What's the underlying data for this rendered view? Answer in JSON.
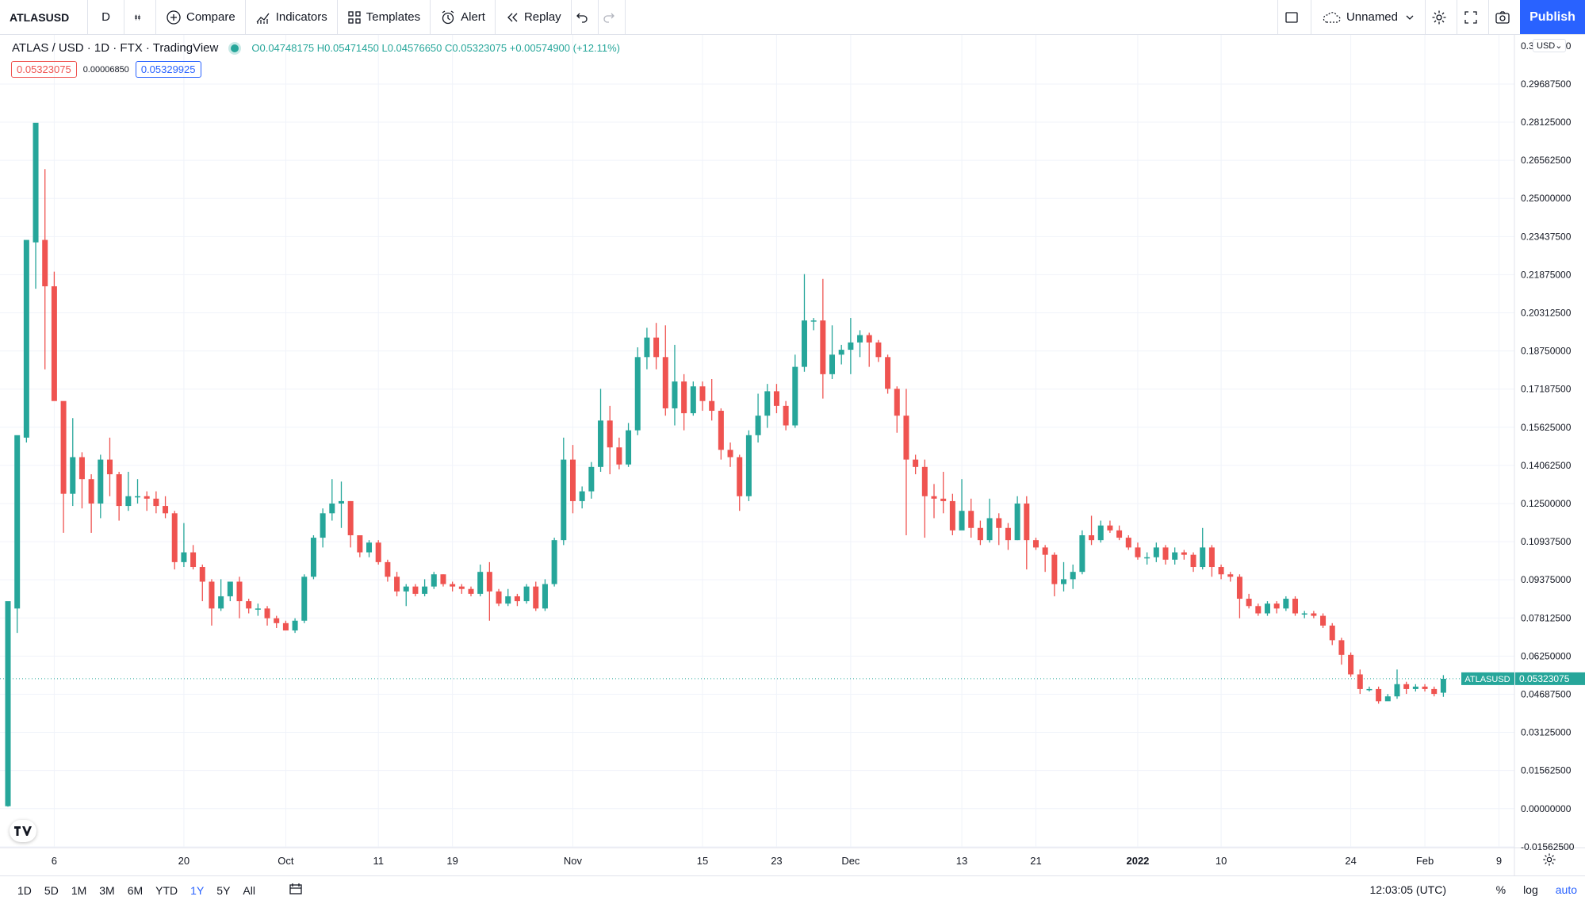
{
  "toolbar": {
    "symbol": "ATLASUSD",
    "interval": "D",
    "compare": "Compare",
    "indicators": "Indicators",
    "templates": "Templates",
    "alert": "Alert",
    "replay": "Replay",
    "layout_name": "Unnamed",
    "publish": "Publish"
  },
  "legend": {
    "title": "ATLAS / USD · 1D · FTX · TradingView",
    "open": "O0.04748175",
    "high": "H0.05471450",
    "low": "L0.04576650",
    "close": "C0.05323075",
    "change": "+0.00574900 (+12.11%)",
    "sell_price": "0.05323075",
    "spread": "0.00006850",
    "buy_price": "0.05329925"
  },
  "colors": {
    "up": "#26a69a",
    "down": "#ef5350",
    "accent": "#2962ff",
    "grid": "#f0f3fa"
  },
  "chart_data": {
    "type": "candlestick",
    "currency": "USD",
    "price_label": "ATLASUSD",
    "last_price": 0.05323075,
    "ylim": [
      -0.016,
      0.317
    ],
    "y_ticks": [
      "0.29687500",
      "0.28125000",
      "0.26562500",
      "0.25000000",
      "0.23437500",
      "0.21875000",
      "0.20312500",
      "0.18750000",
      "0.17187500",
      "0.15625000",
      "0.14062500",
      "0.12500000",
      "0.10937500",
      "0.09375000",
      "0.07812500",
      "0.06250000",
      "0.04687500",
      "0.03125000",
      "0.01562500",
      "0.00000000",
      "-0.01562500"
    ],
    "y_top_partial": "0.31250000",
    "x_ticks": [
      {
        "label": "6",
        "day": 5
      },
      {
        "label": "20",
        "day": 19
      },
      {
        "label": "Oct",
        "day": 30
      },
      {
        "label": "11",
        "day": 40
      },
      {
        "label": "19",
        "day": 48
      },
      {
        "label": "Nov",
        "day": 61
      },
      {
        "label": "15",
        "day": 75
      },
      {
        "label": "23",
        "day": 83
      },
      {
        "label": "Dec",
        "day": 91
      },
      {
        "label": "13",
        "day": 103
      },
      {
        "label": "21",
        "day": 111
      },
      {
        "label": "2022",
        "day": 122
      },
      {
        "label": "10",
        "day": 131
      },
      {
        "label": "24",
        "day": 145
      },
      {
        "label": "Feb",
        "day": 153
      },
      {
        "label": "9",
        "day": 161
      }
    ],
    "candles": [
      [
        0.001,
        0.085,
        0.0008,
        0.082
      ],
      [
        0.082,
        0.153,
        0.072,
        0.152
      ],
      [
        0.152,
        0.233,
        0.15,
        0.232
      ],
      [
        0.232,
        0.281,
        0.213,
        0.233
      ],
      [
        0.233,
        0.214,
        0.262,
        0.18
      ],
      [
        0.214,
        0.167,
        0.22,
        0.175
      ],
      [
        0.167,
        0.129,
        0.166,
        0.113
      ],
      [
        0.129,
        0.144,
        0.16,
        0.124
      ],
      [
        0.144,
        0.135,
        0.146,
        0.123
      ],
      [
        0.135,
        0.125,
        0.137,
        0.113
      ],
      [
        0.125,
        0.143,
        0.145,
        0.119
      ],
      [
        0.143,
        0.137,
        0.152,
        0.128
      ],
      [
        0.137,
        0.124,
        0.138,
        0.118
      ],
      [
        0.124,
        0.128,
        0.138,
        0.122
      ],
      [
        0.128,
        0.128,
        0.135,
        0.125
      ],
      [
        0.128,
        0.127,
        0.13,
        0.122
      ],
      [
        0.127,
        0.124,
        0.13,
        0.121
      ],
      [
        0.124,
        0.121,
        0.128,
        0.119
      ],
      [
        0.121,
        0.101,
        0.122,
        0.098
      ],
      [
        0.101,
        0.105,
        0.117,
        0.099
      ],
      [
        0.105,
        0.099,
        0.108,
        0.098
      ],
      [
        0.099,
        0.093,
        0.1,
        0.085
      ],
      [
        0.093,
        0.082,
        0.094,
        0.075
      ],
      [
        0.082,
        0.087,
        0.094,
        0.081
      ],
      [
        0.087,
        0.093,
        0.093,
        0.085
      ],
      [
        0.093,
        0.085,
        0.095,
        0.078
      ],
      [
        0.085,
        0.082,
        0.086,
        0.08
      ],
      [
        0.082,
        0.082,
        0.084,
        0.079
      ],
      [
        0.082,
        0.078,
        0.083,
        0.075
      ],
      [
        0.078,
        0.076,
        0.079,
        0.074
      ],
      [
        0.076,
        0.073,
        0.077,
        0.073
      ],
      [
        0.073,
        0.077,
        0.078,
        0.072
      ],
      [
        0.077,
        0.095,
        0.096,
        0.076
      ],
      [
        0.095,
        0.111,
        0.112,
        0.094
      ],
      [
        0.111,
        0.121,
        0.123,
        0.107
      ],
      [
        0.121,
        0.125,
        0.135,
        0.118
      ],
      [
        0.125,
        0.126,
        0.134,
        0.115
      ],
      [
        0.126,
        0.112,
        0.126,
        0.107
      ],
      [
        0.112,
        0.105,
        0.112,
        0.103
      ],
      [
        0.105,
        0.109,
        0.11,
        0.103
      ],
      [
        0.109,
        0.101,
        0.11,
        0.1
      ],
      [
        0.101,
        0.095,
        0.102,
        0.093
      ],
      [
        0.095,
        0.089,
        0.097,
        0.087
      ],
      [
        0.089,
        0.091,
        0.092,
        0.083
      ],
      [
        0.091,
        0.088,
        0.092,
        0.087
      ],
      [
        0.088,
        0.091,
        0.094,
        0.087
      ],
      [
        0.091,
        0.096,
        0.097,
        0.09
      ],
      [
        0.096,
        0.092,
        0.096,
        0.091
      ],
      [
        0.092,
        0.091,
        0.093,
        0.089
      ],
      [
        0.091,
        0.09,
        0.092,
        0.088
      ],
      [
        0.09,
        0.088,
        0.091,
        0.087
      ],
      [
        0.088,
        0.097,
        0.1,
        0.087
      ],
      [
        0.097,
        0.089,
        0.101,
        0.077
      ],
      [
        0.089,
        0.084,
        0.09,
        0.083
      ],
      [
        0.084,
        0.087,
        0.09,
        0.083
      ],
      [
        0.087,
        0.085,
        0.088,
        0.083
      ],
      [
        0.085,
        0.091,
        0.092,
        0.084
      ],
      [
        0.091,
        0.082,
        0.093,
        0.081
      ],
      [
        0.082,
        0.092,
        0.094,
        0.081
      ],
      [
        0.092,
        0.11,
        0.111,
        0.091
      ],
      [
        0.11,
        0.143,
        0.152,
        0.108
      ],
      [
        0.143,
        0.126,
        0.149,
        0.121
      ],
      [
        0.126,
        0.13,
        0.132,
        0.123
      ],
      [
        0.13,
        0.14,
        0.142,
        0.127
      ],
      [
        0.14,
        0.159,
        0.172,
        0.138
      ],
      [
        0.159,
        0.148,
        0.165,
        0.137
      ],
      [
        0.148,
        0.141,
        0.152,
        0.139
      ],
      [
        0.141,
        0.155,
        0.158,
        0.14
      ],
      [
        0.155,
        0.185,
        0.189,
        0.153
      ],
      [
        0.185,
        0.193,
        0.197,
        0.18
      ],
      [
        0.193,
        0.185,
        0.199,
        0.18
      ],
      [
        0.185,
        0.164,
        0.198,
        0.161
      ],
      [
        0.164,
        0.175,
        0.19,
        0.157
      ],
      [
        0.175,
        0.162,
        0.178,
        0.155
      ],
      [
        0.162,
        0.173,
        0.175,
        0.161
      ],
      [
        0.173,
        0.167,
        0.175,
        0.163
      ],
      [
        0.167,
        0.163,
        0.176,
        0.159
      ],
      [
        0.163,
        0.147,
        0.164,
        0.143
      ],
      [
        0.147,
        0.144,
        0.15,
        0.14
      ],
      [
        0.144,
        0.128,
        0.145,
        0.122
      ],
      [
        0.128,
        0.153,
        0.155,
        0.126
      ],
      [
        0.153,
        0.161,
        0.17,
        0.15
      ],
      [
        0.161,
        0.171,
        0.174,
        0.156
      ],
      [
        0.171,
        0.165,
        0.174,
        0.162
      ],
      [
        0.165,
        0.157,
        0.167,
        0.155
      ],
      [
        0.157,
        0.181,
        0.186,
        0.156
      ],
      [
        0.181,
        0.2,
        0.219,
        0.179
      ],
      [
        0.2,
        0.2,
        0.201,
        0.196
      ],
      [
        0.2,
        0.178,
        0.217,
        0.168
      ],
      [
        0.178,
        0.186,
        0.198,
        0.176
      ],
      [
        0.186,
        0.188,
        0.19,
        0.182
      ],
      [
        0.188,
        0.191,
        0.201,
        0.178
      ],
      [
        0.191,
        0.194,
        0.196,
        0.185
      ],
      [
        0.194,
        0.191,
        0.195,
        0.181
      ],
      [
        0.191,
        0.185,
        0.192,
        0.183
      ],
      [
        0.185,
        0.172,
        0.186,
        0.17
      ],
      [
        0.172,
        0.161,
        0.173,
        0.154
      ],
      [
        0.161,
        0.143,
        0.172,
        0.112
      ],
      [
        0.143,
        0.14,
        0.145,
        0.137
      ],
      [
        0.14,
        0.128,
        0.143,
        0.111
      ],
      [
        0.128,
        0.127,
        0.133,
        0.119
      ],
      [
        0.127,
        0.126,
        0.138,
        0.121
      ],
      [
        0.126,
        0.114,
        0.129,
        0.112
      ],
      [
        0.114,
        0.122,
        0.135,
        0.116
      ],
      [
        0.122,
        0.115,
        0.127,
        0.111
      ],
      [
        0.115,
        0.11,
        0.118,
        0.108
      ],
      [
        0.11,
        0.119,
        0.127,
        0.109
      ],
      [
        0.119,
        0.115,
        0.121,
        0.108
      ],
      [
        0.115,
        0.11,
        0.117,
        0.106
      ],
      [
        0.11,
        0.125,
        0.128,
        0.11
      ],
      [
        0.125,
        0.11,
        0.128,
        0.098
      ],
      [
        0.11,
        0.107,
        0.111,
        0.106
      ],
      [
        0.107,
        0.104,
        0.108,
        0.097
      ],
      [
        0.104,
        0.092,
        0.105,
        0.087
      ],
      [
        0.092,
        0.094,
        0.101,
        0.089
      ],
      [
        0.094,
        0.097,
        0.1,
        0.09
      ],
      [
        0.097,
        0.112,
        0.114,
        0.096
      ],
      [
        0.112,
        0.11,
        0.12,
        0.108
      ],
      [
        0.11,
        0.116,
        0.118,
        0.109
      ],
      [
        0.116,
        0.114,
        0.118,
        0.113
      ],
      [
        0.114,
        0.111,
        0.116,
        0.11
      ],
      [
        0.111,
        0.107,
        0.112,
        0.106
      ],
      [
        0.107,
        0.103,
        0.109,
        0.102
      ],
      [
        0.103,
        0.103,
        0.105,
        0.1
      ],
      [
        0.103,
        0.107,
        0.109,
        0.101
      ],
      [
        0.107,
        0.102,
        0.108,
        0.1
      ],
      [
        0.102,
        0.105,
        0.107,
        0.1
      ],
      [
        0.105,
        0.104,
        0.106,
        0.102
      ],
      [
        0.104,
        0.099,
        0.105,
        0.097
      ],
      [
        0.099,
        0.107,
        0.115,
        0.098
      ],
      [
        0.107,
        0.099,
        0.108,
        0.095
      ],
      [
        0.099,
        0.096,
        0.1,
        0.094
      ],
      [
        0.096,
        0.095,
        0.097,
        0.093
      ],
      [
        0.095,
        0.086,
        0.096,
        0.078
      ],
      [
        0.086,
        0.083,
        0.088,
        0.082
      ],
      [
        0.083,
        0.08,
        0.084,
        0.079
      ],
      [
        0.08,
        0.084,
        0.085,
        0.079
      ],
      [
        0.084,
        0.082,
        0.085,
        0.08
      ],
      [
        0.082,
        0.086,
        0.087,
        0.081
      ],
      [
        0.086,
        0.08,
        0.087,
        0.079
      ],
      [
        0.08,
        0.08,
        0.081,
        0.078
      ],
      [
        0.08,
        0.079,
        0.081,
        0.078
      ],
      [
        0.079,
        0.075,
        0.08,
        0.074
      ],
      [
        0.075,
        0.069,
        0.076,
        0.067
      ],
      [
        0.069,
        0.063,
        0.07,
        0.059
      ],
      [
        0.063,
        0.055,
        0.064,
        0.054
      ],
      [
        0.055,
        0.049,
        0.057,
        0.047
      ],
      [
        0.049,
        0.049,
        0.05,
        0.048
      ],
      [
        0.049,
        0.044,
        0.05,
        0.043
      ],
      [
        0.044,
        0.046,
        0.047,
        0.045
      ],
      [
        0.046,
        0.051,
        0.057,
        0.045
      ],
      [
        0.051,
        0.049,
        0.052,
        0.047
      ],
      [
        0.049,
        0.05,
        0.051,
        0.048
      ],
      [
        0.05,
        0.049,
        0.051,
        0.048
      ],
      [
        0.049,
        0.047,
        0.05,
        0.046
      ],
      [
        0.0475,
        0.0532,
        0.0547,
        0.0458
      ]
    ]
  },
  "bottom": {
    "ranges": [
      "1D",
      "5D",
      "1M",
      "3M",
      "6M",
      "YTD",
      "1Y",
      "5Y",
      "All"
    ],
    "active_range": "1Y",
    "clock": "12:03:05 (UTC)",
    "percent": "%",
    "log": "log",
    "auto": "auto"
  }
}
